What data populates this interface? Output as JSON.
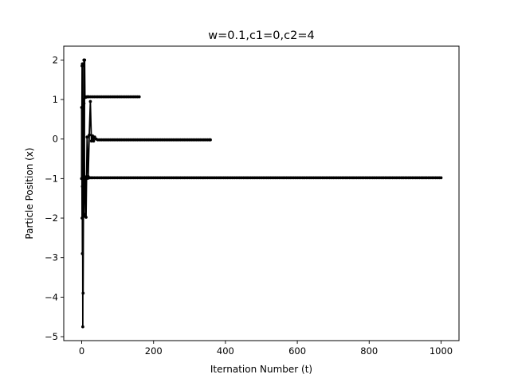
{
  "chart_data": {
    "type": "line",
    "title": "w=0.1,c1=0,c2=4",
    "xlabel": "Iternation Number (t)",
    "ylabel": "Particle Position (x)",
    "xlim": [
      -50,
      1050
    ],
    "ylim": [
      -5.1,
      2.35
    ],
    "xticks": [
      0,
      200,
      400,
      600,
      800,
      1000
    ],
    "yticks": [
      -5,
      -4,
      -3,
      -2,
      -1,
      0,
      1,
      2
    ],
    "xtick_labels": [
      "0",
      "200",
      "400",
      "600",
      "800",
      "1000"
    ],
    "ytick_labels": [
      "−5",
      "−4",
      "−3",
      "−2",
      "−1",
      "0",
      "1",
      "2"
    ],
    "grid": false,
    "legend": "none",
    "line_color": "#000000",
    "marker": "dot",
    "series": [
      {
        "x": [
          0,
          1,
          2,
          3,
          4,
          5,
          6,
          7,
          8,
          9,
          10,
          12,
          14,
          16,
          18,
          20,
          40,
          80,
          120,
          160
        ],
        "values": [
          0.8,
          -2.0,
          1.9,
          -4.75,
          1.0,
          -1.0,
          0.9,
          -1.9,
          2.0,
          1.05,
          1.07,
          1.06,
          1.07,
          1.07,
          1.07,
          1.07,
          1.07,
          1.07,
          1.07,
          1.07
        ]
      },
      {
        "x": [
          0,
          1,
          2,
          3,
          4,
          5,
          6,
          7,
          8,
          10,
          12,
          15,
          18,
          21,
          24,
          27,
          30,
          33,
          36,
          40,
          45,
          60,
          100,
          200,
          300,
          358
        ],
        "values": [
          -1.0,
          1.85,
          -2.9,
          0.9,
          -3.9,
          -1.2,
          2.0,
          -1.95,
          -0.95,
          -1.0,
          -1.98,
          0.05,
          -0.95,
          0.1,
          0.95,
          -0.05,
          0.08,
          -0.05,
          0.05,
          0.0,
          -0.02,
          -0.02,
          -0.02,
          -0.02,
          -0.02,
          -0.02
        ]
      },
      {
        "x": [
          0,
          1,
          2,
          3,
          4,
          5,
          6,
          8,
          10,
          12,
          14,
          18,
          22,
          26,
          30,
          40,
          60,
          100,
          200,
          400,
          600,
          800,
          1000
        ],
        "values": [
          -1.0,
          0.8,
          -1.2,
          1.0,
          -1.9,
          -0.95,
          0.9,
          -1.05,
          -0.97,
          -0.98,
          -1.0,
          -0.99,
          -0.98,
          -0.98,
          -0.98,
          -0.98,
          -0.98,
          -0.98,
          -0.98,
          -0.98,
          -0.98,
          -0.98,
          -0.98
        ]
      }
    ]
  }
}
